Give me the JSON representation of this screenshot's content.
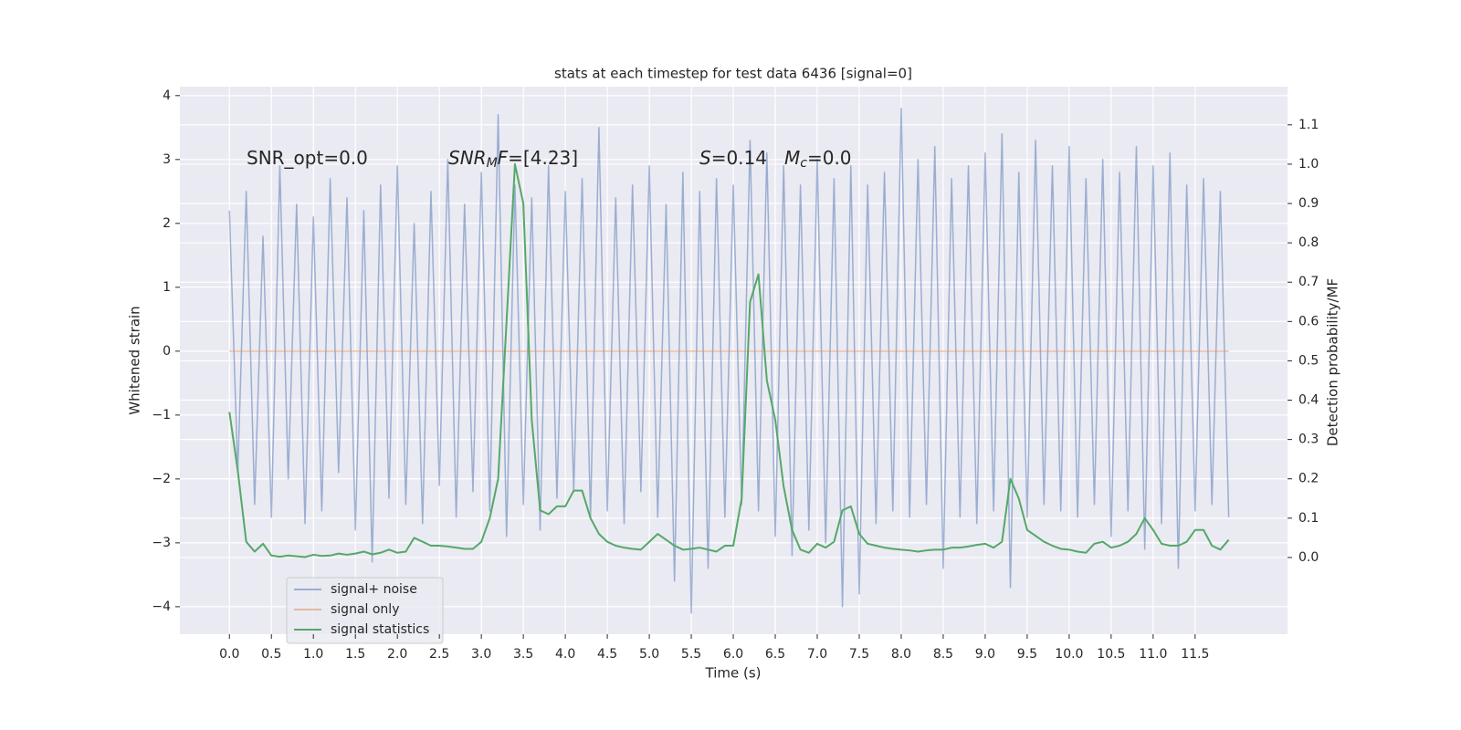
{
  "chart_data": {
    "type": "line",
    "title": "stats at each timestep for test data 6436 [signal=0]",
    "x_label": "Time (s)",
    "y_label": "Whitened strain",
    "y2_label": "Detection probability/MF",
    "annotations": [
      {
        "text": [
          "SNR_opt=0.0"
        ]
      },
      {
        "text": [
          "SNR",
          "M",
          "F",
          "=[4.23]"
        ]
      },
      {
        "text": [
          "S",
          "=0.14"
        ]
      },
      {
        "text": [
          "M",
          "c",
          "=0.0"
        ]
      }
    ],
    "x": [
      0,
      0.1,
      0.2,
      0.3,
      0.4,
      0.5,
      0.6,
      0.7,
      0.8,
      0.9,
      1,
      1.1,
      1.2,
      1.3,
      1.4,
      1.5,
      1.6,
      1.7,
      1.8,
      1.9,
      2,
      2.1,
      2.2,
      2.3,
      2.4,
      2.5,
      2.6,
      2.7,
      2.8,
      2.9,
      3,
      3.1,
      3.2,
      3.3,
      3.4,
      3.5,
      3.6,
      3.7,
      3.8,
      3.9,
      4,
      4.1,
      4.2,
      4.3,
      4.4,
      4.5,
      4.6,
      4.7,
      4.8,
      4.9,
      5,
      5.1,
      5.2,
      5.3,
      5.4,
      5.5,
      5.6,
      5.7,
      5.8,
      5.9,
      6,
      6.1,
      6.2,
      6.3,
      6.4,
      6.5,
      6.6,
      6.7,
      6.8,
      6.9,
      7,
      7.1,
      7.2,
      7.3,
      7.4,
      7.5,
      7.6,
      7.7,
      7.8,
      7.9,
      8,
      8.1,
      8.2,
      8.3,
      8.4,
      8.5,
      8.6,
      8.7,
      8.8,
      8.9,
      9,
      9.1,
      9.2,
      9.3,
      9.4,
      9.5,
      9.6,
      9.7,
      9.8,
      9.9,
      10,
      10.1,
      10.2,
      10.3,
      10.4,
      10.5,
      10.6,
      10.7,
      10.8,
      10.9,
      11,
      11.1,
      11.2,
      11.3,
      11.4,
      11.5,
      11.6,
      11.7,
      11.8,
      11.9
    ],
    "series": [
      {
        "name": "signal+ noise",
        "color": "#4c72b0",
        "opacity": 0.5,
        "values": [
          2.2,
          -1.9,
          2.5,
          -2.4,
          1.8,
          -2.6,
          2.9,
          -2.0,
          2.3,
          -2.7,
          2.1,
          -2.5,
          2.7,
          -1.9,
          2.4,
          -2.8,
          2.2,
          -3.3,
          2.6,
          -2.3,
          2.9,
          -2.4,
          2.0,
          -2.7,
          2.5,
          -2.1,
          3.0,
          -2.6,
          2.3,
          -2.2,
          2.8,
          -2.5,
          3.7,
          -2.9,
          2.6,
          -2.4,
          2.4,
          -2.8,
          2.9,
          -2.3,
          2.5,
          -2.2,
          2.7,
          -2.6,
          3.5,
          -2.5,
          2.4,
          -2.7,
          2.6,
          -2.2,
          2.9,
          -2.6,
          2.3,
          -3.6,
          2.8,
          -4.1,
          2.5,
          -3.4,
          2.7,
          -2.6,
          2.6,
          -2.4,
          3.3,
          -2.5,
          3.1,
          -2.9,
          2.9,
          -3.2,
          2.6,
          -2.8,
          3.0,
          -3.0,
          2.7,
          -4.0,
          2.9,
          -3.8,
          2.6,
          -2.7,
          2.8,
          -2.5,
          3.8,
          -2.6,
          3.0,
          -2.4,
          3.2,
          -3.4,
          2.7,
          -2.6,
          2.9,
          -2.7,
          3.1,
          -2.5,
          3.4,
          -3.7,
          2.8,
          -2.6,
          3.3,
          -2.4,
          2.9,
          -2.5,
          3.2,
          -2.6,
          2.7,
          -2.4,
          3.0,
          -2.9,
          2.8,
          -2.5,
          3.2,
          -3.1,
          2.9,
          -2.7,
          3.1,
          -3.4,
          2.6,
          -2.5,
          2.7,
          -2.4,
          2.5,
          -2.6
        ]
      },
      {
        "name": "signal only",
        "color": "#dd8452",
        "opacity": 0.5,
        "values": [
          0,
          0,
          0,
          0,
          0,
          0,
          0,
          0,
          0,
          0,
          0,
          0,
          0,
          0,
          0,
          0,
          0,
          0,
          0,
          0,
          0,
          0,
          0,
          0,
          0,
          0,
          0,
          0,
          0,
          0,
          0,
          0,
          0,
          0,
          0,
          0,
          0,
          0,
          0,
          0,
          0,
          0,
          0,
          0,
          0,
          0,
          0,
          0,
          0,
          0,
          0,
          0,
          0,
          0,
          0,
          0,
          0,
          0,
          0,
          0,
          0,
          0,
          0,
          0,
          0,
          0,
          0,
          0,
          0,
          0,
          0,
          0,
          0,
          0,
          0,
          0,
          0,
          0,
          0,
          0,
          0,
          0,
          0,
          0,
          0,
          0,
          0,
          0,
          0,
          0,
          0,
          0,
          0,
          0,
          0,
          0,
          0,
          0,
          0,
          0,
          0,
          0,
          0,
          0,
          0,
          0,
          0,
          0,
          0,
          0,
          0,
          0,
          0,
          0,
          0,
          0,
          0,
          0,
          0,
          0
        ]
      },
      {
        "name": "signal statistics",
        "color": "#55a868",
        "opacity": 1,
        "axis": "y2",
        "values": [
          0.37,
          0.22,
          0.04,
          0.015,
          0.035,
          0.005,
          0.002,
          0.005,
          0.003,
          0.001,
          0.007,
          0.004,
          0.005,
          0.01,
          0.007,
          0.01,
          0.015,
          0.008,
          0.012,
          0.02,
          0.012,
          0.015,
          0.05,
          0.04,
          0.03,
          0.03,
          0.028,
          0.025,
          0.022,
          0.022,
          0.04,
          0.1,
          0.2,
          0.6,
          1.0,
          0.9,
          0.35,
          0.12,
          0.11,
          0.13,
          0.13,
          0.17,
          0.17,
          0.1,
          0.06,
          0.04,
          0.03,
          0.025,
          0.022,
          0.02,
          0.04,
          0.06,
          0.045,
          0.03,
          0.02,
          0.022,
          0.025,
          0.02,
          0.015,
          0.03,
          0.03,
          0.15,
          0.65,
          0.72,
          0.45,
          0.35,
          0.18,
          0.07,
          0.02,
          0.012,
          0.035,
          0.025,
          0.04,
          0.12,
          0.13,
          0.06,
          0.035,
          0.03,
          0.025,
          0.022,
          0.02,
          0.018,
          0.015,
          0.018,
          0.02,
          0.02,
          0.025,
          0.025,
          0.028,
          0.032,
          0.035,
          0.025,
          0.04,
          0.2,
          0.15,
          0.07,
          0.055,
          0.04,
          0.03,
          0.022,
          0.02,
          0.015,
          0.012,
          0.035,
          0.04,
          0.025,
          0.03,
          0.04,
          0.06,
          0.1,
          0.07,
          0.035,
          0.03,
          0.03,
          0.04,
          0.07,
          0.07,
          0.03,
          0.02,
          0.045
        ]
      }
    ],
    "xlim": [
      -0.59,
      12.6
    ],
    "xticks": [
      {
        "value": 0,
        "label": "0.0"
      },
      0.5,
      {
        "value": 1,
        "label": "1.0"
      },
      1.5,
      {
        "value": 2,
        "label": "2.0"
      },
      2.5,
      {
        "value": 3,
        "label": "3.0"
      },
      3.5,
      {
        "value": 4,
        "label": "4.0"
      },
      4.5,
      {
        "value": 5,
        "label": "5.0"
      },
      5.5,
      {
        "value": 6,
        "label": "6.0"
      },
      6.5,
      {
        "value": 7,
        "label": "7.0"
      },
      7.5,
      {
        "value": 8,
        "label": "8.0"
      },
      8.5,
      {
        "value": 9,
        "label": "9.0"
      },
      9.5,
      {
        "value": 10,
        "label": "10.0"
      },
      10.5,
      {
        "value": 11,
        "label": "11.0"
      },
      11.5
    ],
    "ylim": [
      -4.43,
      4.14
    ],
    "yticks": [
      {
        "value": -4,
        "label": "−4"
      },
      {
        "value": -3,
        "label": "−3"
      },
      {
        "value": -2,
        "label": "−2"
      },
      {
        "value": -1,
        "label": "−1"
      },
      0,
      1,
      2,
      3,
      4
    ],
    "y2lim": [
      -0.195,
      1.197
    ],
    "y2ticks": [
      {
        "value": 0,
        "label": "0.0"
      },
      0.1,
      0.2,
      0.3,
      0.4,
      0.5,
      0.6,
      0.7,
      0.8,
      0.9,
      {
        "value": 1,
        "label": "1.0"
      },
      1.1
    ],
    "grid": true,
    "legend": "lower left",
    "background": "#eaeaf2"
  }
}
